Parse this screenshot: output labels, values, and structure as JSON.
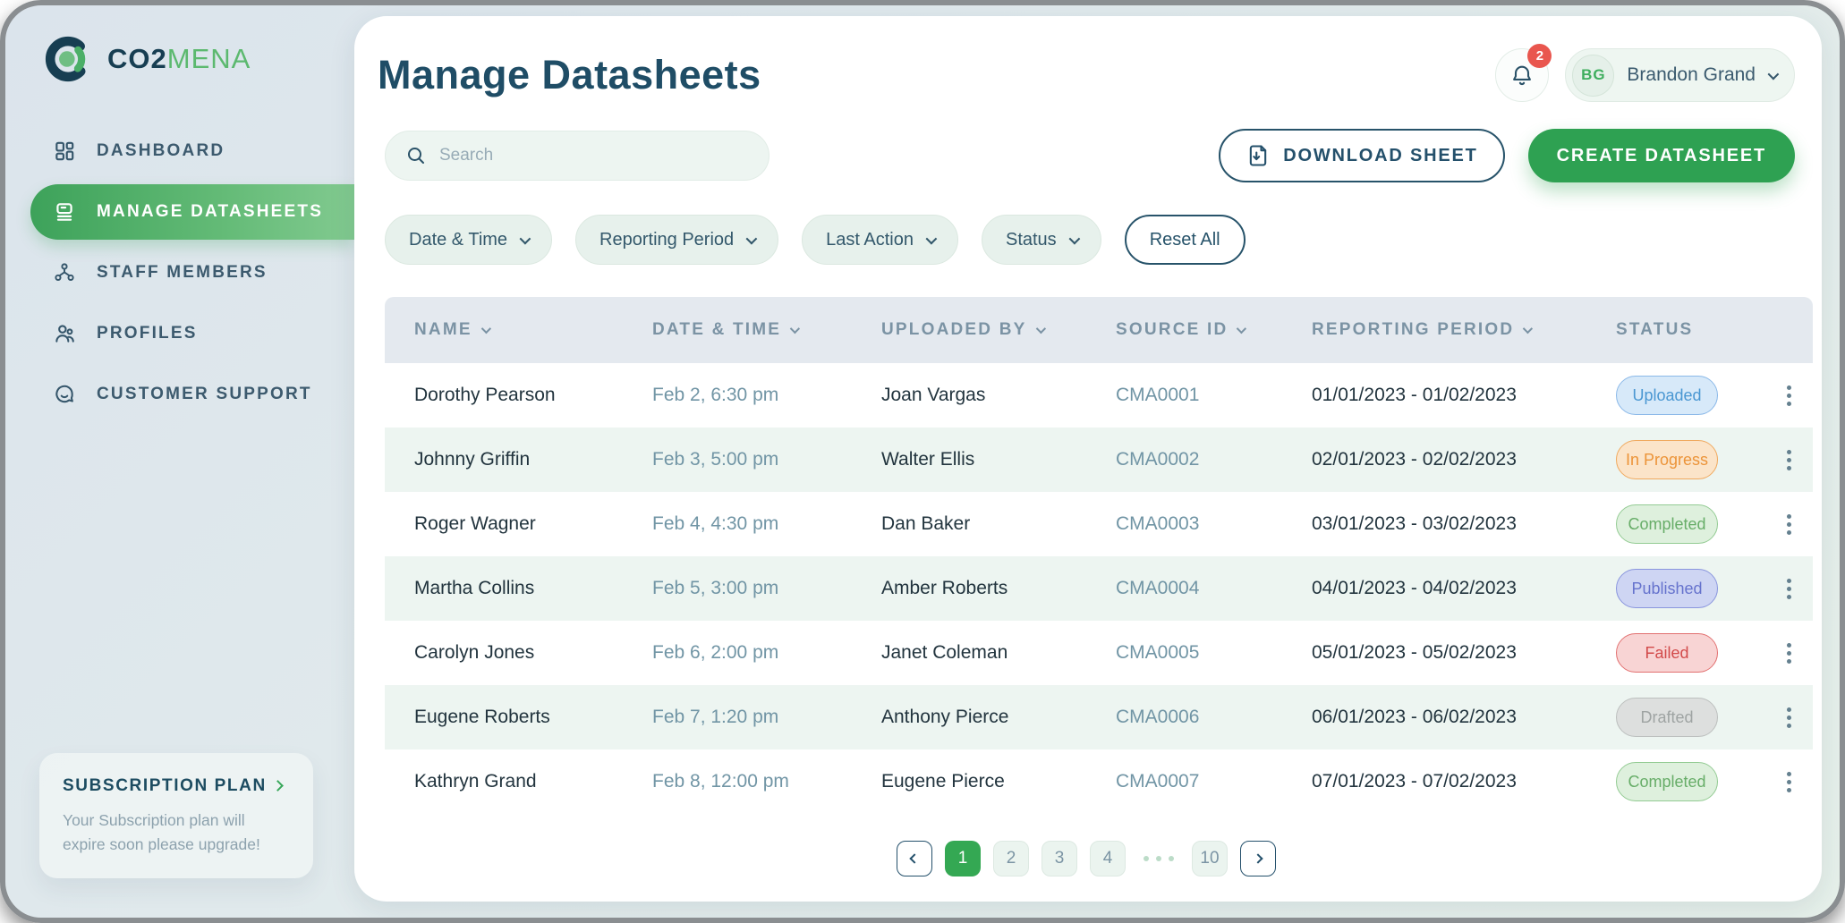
{
  "brand": {
    "primary": "CO2",
    "secondary": "MENA"
  },
  "sidebar": {
    "items": [
      {
        "id": "dashboard",
        "label": "DASHBOARD",
        "icon": "dashboard-icon",
        "active": false
      },
      {
        "id": "manage-datasheets",
        "label": "MANAGE DATASHEETS",
        "icon": "datasheet-icon",
        "active": true
      },
      {
        "id": "staff-members",
        "label": "STAFF MEMBERS",
        "icon": "staff-icon",
        "active": false
      },
      {
        "id": "profiles",
        "label": "PROFILES",
        "icon": "profile-icon",
        "active": false
      },
      {
        "id": "customer-support",
        "label": "CUSTOMER SUPPORT",
        "icon": "support-icon",
        "active": false
      }
    ],
    "subscription": {
      "title": "SUBSCRIPTION PLAN",
      "body": "Your Subscription plan will expire soon please upgrade!"
    }
  },
  "header": {
    "title": "Manage Datasheets",
    "notifications_count": "2",
    "user": {
      "initials": "BG",
      "name": "Brandon Grand"
    }
  },
  "toolbar": {
    "search_placeholder": "Search",
    "download_label": "DOWNLOAD SHEET",
    "create_label": "CREATE DATASHEET"
  },
  "filters": {
    "chips": [
      "Date & Time",
      "Reporting Period",
      "Last Action",
      "Status"
    ],
    "reset_label": "Reset All"
  },
  "table": {
    "columns": [
      {
        "label": "NAME",
        "sortable": true
      },
      {
        "label": "DATE & TIME",
        "sortable": true
      },
      {
        "label": "UPLOADED BY",
        "sortable": true
      },
      {
        "label": "SOURCE ID",
        "sortable": true
      },
      {
        "label": "REPORTING PERIOD",
        "sortable": true
      },
      {
        "label": "STATUS",
        "sortable": false
      }
    ],
    "rows": [
      {
        "name": "Dorothy Pearson",
        "datetime": "Feb 2, 6:30 pm",
        "uploaded_by": "Joan Vargas",
        "source_id": "CMA0001",
        "period": "01/01/2023  - 01/02/2023",
        "status": "Uploaded"
      },
      {
        "name": "Johnny Griffin",
        "datetime": "Feb 3, 5:00 pm",
        "uploaded_by": "Walter Ellis",
        "source_id": "CMA0002",
        "period": "02/01/2023  - 02/02/2023",
        "status": "In Progress"
      },
      {
        "name": "Roger Wagner",
        "datetime": "Feb 4, 4:30 pm",
        "uploaded_by": "Dan Baker",
        "source_id": "CMA0003",
        "period": "03/01/2023  - 03/02/2023",
        "status": "Completed"
      },
      {
        "name": "Martha Collins",
        "datetime": "Feb 5, 3:00 pm",
        "uploaded_by": "Amber Roberts",
        "source_id": "CMA0004",
        "period": "04/01/2023  - 04/02/2023",
        "status": "Published"
      },
      {
        "name": "Carolyn Jones",
        "datetime": "Feb 6, 2:00 pm",
        "uploaded_by": "Janet Coleman",
        "source_id": "CMA0005",
        "period": "05/01/2023  - 05/02/2023",
        "status": "Failed"
      },
      {
        "name": "Eugene Roberts",
        "datetime": "Feb 7, 1:20 pm",
        "uploaded_by": "Anthony Pierce",
        "source_id": "CMA0006",
        "period": "06/01/2023  - 06/02/2023",
        "status": "Drafted"
      },
      {
        "name": "Kathryn Grand",
        "datetime": "Feb 8, 12:00 pm",
        "uploaded_by": "Eugene Pierce",
        "source_id": "CMA0007",
        "period": "07/01/2023  - 07/02/2023",
        "status": "Completed"
      }
    ],
    "status_styles": {
      "Uploaded": {
        "text": "#4a97d2",
        "bg": "#d7e9f9",
        "border": "#8ab8e8"
      },
      "In Progress": {
        "text": "#ec9439",
        "bg": "#fbe4c9",
        "border": "#f0a95e"
      },
      "Completed": {
        "text": "#67ad68",
        "bg": "#def0dd",
        "border": "#93cb93"
      },
      "Published": {
        "text": "#6673cd",
        "bg": "#ced5f3",
        "border": "#8995de"
      },
      "Failed": {
        "text": "#d24a4a",
        "bg": "#f8d4d4",
        "border": "#e27070"
      },
      "Drafted": {
        "text": "#9fa4a3",
        "bg": "#dddfde",
        "border": "#bcbfbe"
      }
    }
  },
  "pagination": {
    "current": "1",
    "pages": [
      "1",
      "2",
      "3",
      "4"
    ],
    "last_page": "10"
  },
  "colors": {
    "accent_green": "#2ea152",
    "dark_teal": "#1f4d66",
    "sidebar_text": "#3c5a6e",
    "muted_text": "#7b94a4",
    "notification_red": "#e9564e",
    "alt_row": "#edf5f1",
    "header_row": "#e4e9ef"
  }
}
